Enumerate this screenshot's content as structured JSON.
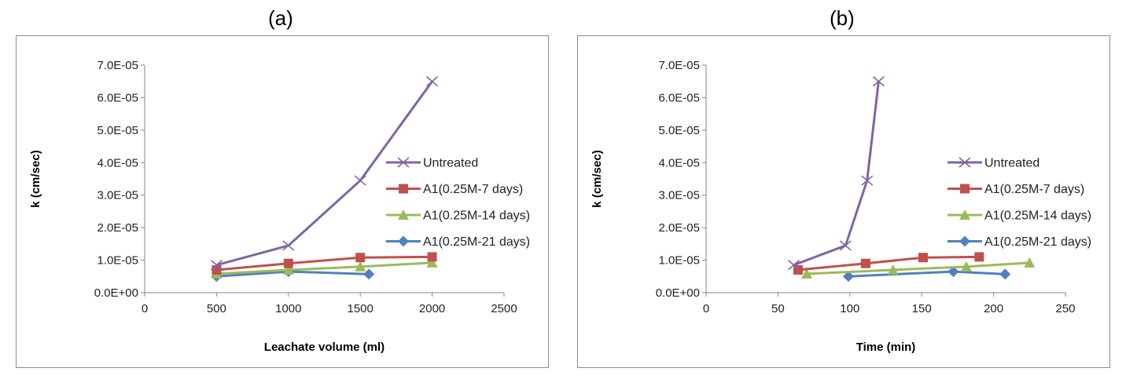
{
  "figure": {
    "panel_a_label": "(a)",
    "panel_b_label": "(b)"
  },
  "colors": {
    "untreated": "#8064A2",
    "d7": "#C0504D",
    "d14": "#9BBB59",
    "d21": "#4F81BD"
  },
  "chart_data": [
    {
      "type": "line",
      "title": "",
      "xlabel": "Leachate volume (ml)",
      "ylabel": "k (cm/sec)",
      "xlim": [
        0,
        2500
      ],
      "ylim": [
        0,
        7e-05
      ],
      "xticks": [
        "0",
        "500",
        "1000",
        "1500",
        "2000",
        "2500"
      ],
      "yticks": [
        "0.0E+00",
        "1.0E-05",
        "2.0E-05",
        "3.0E-05",
        "4.0E-05",
        "5.0E-05",
        "6.0E-05",
        "7.0E-05"
      ],
      "grid": false,
      "legend": "right",
      "series": [
        {
          "name": "Untreated",
          "marker": "x",
          "color": "#8064A2",
          "x": [
            500,
            1000,
            1500,
            2000
          ],
          "y": [
            8.5e-06,
            1.45e-05,
            3.45e-05,
            6.5e-05
          ]
        },
        {
          "name": "A1(0.25M-7 days)",
          "marker": "square",
          "color": "#C0504D",
          "x": [
            500,
            1000,
            1500,
            2000
          ],
          "y": [
            7e-06,
            9e-06,
            1.08e-05,
            1.1e-05
          ]
        },
        {
          "name": "A1(0.25M-14 days)",
          "marker": "triangle",
          "color": "#9BBB59",
          "x": [
            500,
            1000,
            1500,
            2000
          ],
          "y": [
            5.8e-06,
            7e-06,
            8e-06,
            9.2e-06
          ]
        },
        {
          "name": "A1(0.25M-21 days)",
          "marker": "diamond",
          "color": "#4F81BD",
          "x": [
            500,
            1000,
            1560
          ],
          "y": [
            5e-06,
            6.5e-06,
            5.7e-06
          ]
        }
      ]
    },
    {
      "type": "line",
      "title": "",
      "xlabel": "Time (min)",
      "ylabel": "k (cm/sec)",
      "xlim": [
        0,
        250
      ],
      "ylim": [
        0,
        7e-05
      ],
      "xticks": [
        "0",
        "50",
        "100",
        "150",
        "200",
        "250"
      ],
      "yticks": [
        "0.0E+00",
        "1.0E-05",
        "2.0E-05",
        "3.0E-05",
        "4.0E-05",
        "5.0E-05",
        "6.0E-05",
        "7.0E-05"
      ],
      "grid": false,
      "legend": "right",
      "series": [
        {
          "name": "Untreated",
          "marker": "x",
          "color": "#8064A2",
          "x": [
            61,
            97,
            112,
            120
          ],
          "y": [
            8.5e-06,
            1.45e-05,
            3.45e-05,
            6.5e-05
          ]
        },
        {
          "name": "A1(0.25M-7 days)",
          "marker": "square",
          "color": "#C0504D",
          "x": [
            64,
            111,
            151,
            190
          ],
          "y": [
            7e-06,
            9e-06,
            1.08e-05,
            1.1e-05
          ]
        },
        {
          "name": "A1(0.25M-14 days)",
          "marker": "triangle",
          "color": "#9BBB59",
          "x": [
            70,
            130,
            181,
            225
          ],
          "y": [
            5.8e-06,
            7e-06,
            8e-06,
            9.2e-06
          ]
        },
        {
          "name": "A1(0.25M-21 days)",
          "marker": "diamond",
          "color": "#4F81BD",
          "x": [
            99,
            172,
            208
          ],
          "y": [
            5e-06,
            6.5e-06,
            5.7e-06
          ]
        }
      ]
    }
  ]
}
